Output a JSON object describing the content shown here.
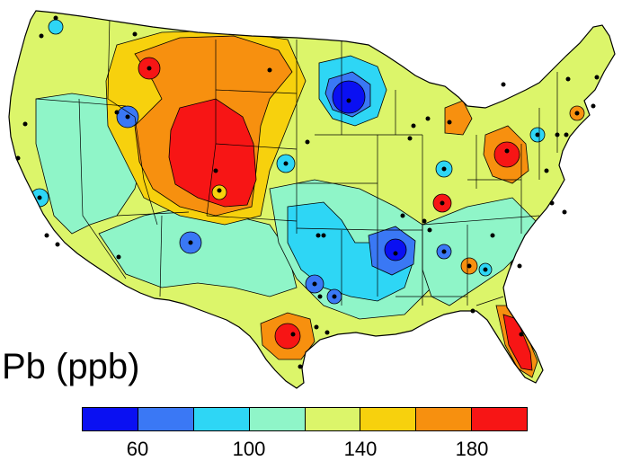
{
  "title": "Pb (ppb)",
  "legend": {
    "bins": [
      {
        "range": [
          40,
          60
        ],
        "color": "#0a10f2"
      },
      {
        "range": [
          60,
          80
        ],
        "color": "#3a78f5"
      },
      {
        "range": [
          80,
          100
        ],
        "color": "#2ed6f5"
      },
      {
        "range": [
          100,
          120
        ],
        "color": "#8ff5c8"
      },
      {
        "range": [
          120,
          140
        ],
        "color": "#dcf56a"
      },
      {
        "range": [
          140,
          160
        ],
        "color": "#f7d10d"
      },
      {
        "range": [
          160,
          180
        ],
        "color": "#f7900f"
      },
      {
        "range": [
          180,
          200
        ],
        "color": "#f71515"
      }
    ],
    "ticks": [
      "60",
      "100",
      "140",
      "180"
    ]
  },
  "map": {
    "region": "Contiguous United States",
    "background_class_color": "#dcf56a",
    "colors": {
      "very_low": "#0a10f2",
      "low": "#3a78f5",
      "mid_low": "#2ed6f5",
      "mid": "#8ff5c8",
      "mid_high": "#dcf56a",
      "high": "#f7d10d",
      "very_high": "#f7900f",
      "extreme": "#f71515"
    }
  }
}
